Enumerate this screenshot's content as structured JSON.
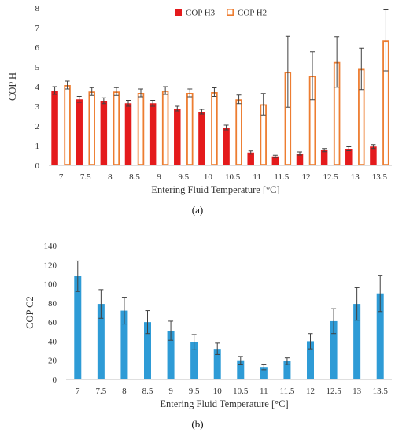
{
  "chart_data": [
    {
      "type": "bar",
      "panel": "(a)",
      "categories": [
        "7",
        "7.5",
        "8",
        "8.5",
        "9",
        "9.5",
        "10",
        "10.5",
        "11",
        "11.5",
        "12",
        "12.5",
        "13",
        "13.5"
      ],
      "series": [
        {
          "name": "COP H3",
          "color": "#e41a1c",
          "fill": "solid",
          "values": [
            3.8,
            3.35,
            3.28,
            3.15,
            3.15,
            2.88,
            2.72,
            1.92,
            0.65,
            0.45,
            0.6,
            0.77,
            0.84,
            0.95
          ],
          "error": [
            0.2,
            0.15,
            0.15,
            0.15,
            0.15,
            0.12,
            0.12,
            0.12,
            0.08,
            0.06,
            0.08,
            0.08,
            0.1,
            0.1
          ]
        },
        {
          "name": "COP H2",
          "color": "#ed7d31",
          "fill": "outline",
          "values": [
            4.08,
            3.75,
            3.75,
            3.68,
            3.8,
            3.68,
            3.72,
            3.35,
            3.1,
            4.75,
            4.55,
            5.25,
            4.9,
            6.35
          ],
          "error": [
            0.2,
            0.2,
            0.2,
            0.2,
            0.2,
            0.2,
            0.22,
            0.22,
            0.55,
            1.8,
            1.22,
            1.28,
            1.05,
            1.55
          ]
        }
      ],
      "xlabel": "Entering Fluid Temperature [°C]",
      "ylabel": "COP H",
      "ylim": [
        0,
        8
      ],
      "yticks": [
        "0",
        "1",
        "2",
        "3",
        "4",
        "5",
        "6",
        "7",
        "8"
      ],
      "legend": "top-center",
      "grid": false,
      "caption": "(a)"
    },
    {
      "type": "bar",
      "panel": "(b)",
      "categories": [
        "7",
        "7.5",
        "8",
        "8.5",
        "9",
        "9.5",
        "10",
        "10.5",
        "11",
        "11.5",
        "12",
        "12.5",
        "13",
        "13.5"
      ],
      "series": [
        {
          "color": "#2e9bd6",
          "fill": "solid",
          "values": [
            108,
            79,
            72,
            60,
            51,
            39,
            32,
            20,
            13,
            19,
            40,
            61,
            79,
            90
          ],
          "error": [
            16,
            15,
            14,
            12,
            10,
            8,
            6,
            4,
            3,
            3.5,
            8,
            13,
            17,
            19
          ]
        }
      ],
      "xlabel": "Entering Fluid Temperature [°C]",
      "ylabel": "COP C2",
      "ylim": [
        0,
        140
      ],
      "yticks": [
        "0",
        "20",
        "40",
        "60",
        "80",
        "100",
        "120",
        "140"
      ],
      "grid": false,
      "caption": "(b)"
    }
  ]
}
